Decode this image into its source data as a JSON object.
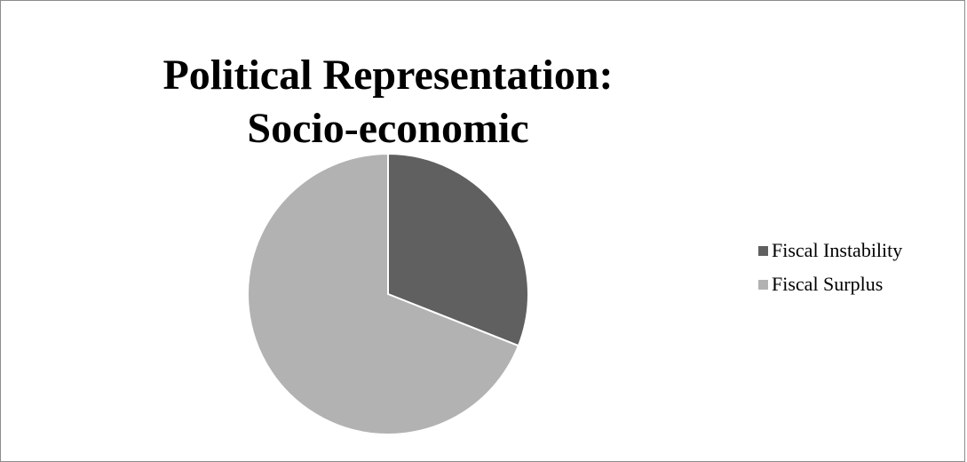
{
  "chart_data": {
    "type": "pie",
    "title_line1": "Political Representation:",
    "title_line2": "Socio-economic",
    "slices": [
      {
        "label": "Fiscal Instability",
        "value": 31,
        "color": "#606060"
      },
      {
        "label": "Fiscal Surplus",
        "value": 69,
        "color": "#b2b2b2"
      }
    ],
    "start_angle_deg": 0,
    "direction": "clockwise",
    "legend_position": "right"
  }
}
